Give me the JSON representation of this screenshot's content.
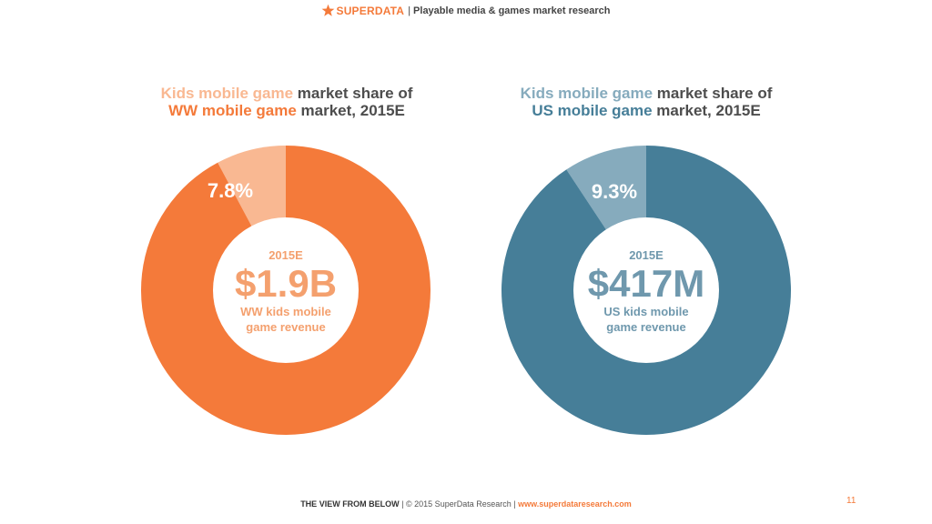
{
  "header": {
    "brand": "SUPERDATA",
    "separator": "|",
    "tagline": "Playable media & games market research"
  },
  "colors": {
    "brand": "#f47a3a",
    "orange_main": "#f47a3a",
    "orange_light": "#f9b892",
    "blue_main": "#467e98",
    "blue_light": "#86abbd"
  },
  "charts": [
    {
      "id": "ww",
      "title_line1_accent": "Kids mobile game",
      "title_line1_rest": " market share of",
      "title_line2_accent": "WW mobile game",
      "title_line2_rest": " market, 2015E",
      "share_label": "7.8%",
      "center_year": "2015E",
      "center_value": "$1.9B",
      "center_caption_1": "WW kids mobile",
      "center_caption_2": "game revenue"
    },
    {
      "id": "us",
      "title_line1_accent": "Kids mobile game",
      "title_line1_rest": " market share of",
      "title_line2_accent": "US mobile game",
      "title_line2_rest": " market, 2015E",
      "share_label": "9.3%",
      "center_year": "2015E",
      "center_value": "$417M",
      "center_caption_1": "US kids mobile",
      "center_caption_2": "game revenue"
    }
  ],
  "chart_data": [
    {
      "type": "pie",
      "categories": [
        "Kids mobile game",
        "Other"
      ],
      "values": [
        7.8,
        92.2
      ],
      "colors": [
        "#f9b892",
        "#f47a3a"
      ],
      "donut": true
    },
    {
      "type": "pie",
      "categories": [
        "Kids mobile game",
        "Other"
      ],
      "values": [
        9.3,
        90.7
      ],
      "colors": [
        "#86abbd",
        "#467e98"
      ],
      "donut": true
    }
  ],
  "footer": {
    "brand": "THE VIEW FROM BELOW",
    "sep1": " | ",
    "copyright": "© 2015 SuperData Research",
    "sep2": " | ",
    "url": "www.superdataresearch.com",
    "page_number": "11"
  }
}
